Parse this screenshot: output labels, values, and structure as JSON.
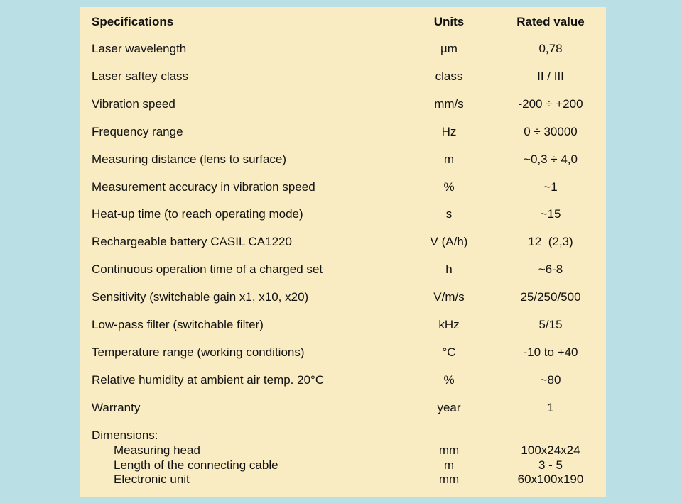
{
  "table": {
    "header": [
      "Specifications",
      "Units",
      "Rated value"
    ],
    "rows": [
      [
        "Laser wavelength",
        "µm",
        "0,78"
      ],
      [
        "Laser saftey class",
        "class",
        "II / III"
      ],
      [
        "Vibration speed",
        "mm/s",
        "-200 ÷ +200"
      ],
      [
        "Frequency range",
        "Hz",
        "0 ÷ 30000"
      ],
      [
        "Measuring distance (lens to surface)",
        "m",
        "~0,3 ÷ 4,0"
      ],
      [
        "Measurement accuracy in vibration speed",
        "%",
        "~1"
      ],
      [
        "Heat-up time (to reach operating mode)",
        "s",
        "~15"
      ],
      [
        "Rechargeable battery CASIL CA1220",
        "V (A/h)",
        "12  (2,3)"
      ],
      [
        "Continuous operation time of a charged set",
        "h",
        "~6-8"
      ],
      [
        "Sensitivity (switchable gain x1, x10, x20)",
        "V/m/s",
        "25/250/500"
      ],
      [
        "Low-pass filter (switchable filter)",
        "kHz",
        "5/15"
      ],
      [
        "Temperature range (working conditions)",
        "°C",
        "-10 to +40"
      ],
      [
        "Relative humidity at ambient air temp. 20°C",
        "%",
        "~80"
      ],
      [
        "Warranty",
        "year",
        "1"
      ]
    ],
    "dimensions": {
      "label": "Dimensions:",
      "items": [
        [
          "Measuring head",
          "mm",
          "100x24x24"
        ],
        [
          "Length of the connecting cable",
          "m",
          "3 - 5"
        ],
        [
          "Electronic unit",
          "mm",
          "60x100x190"
        ]
      ]
    }
  }
}
